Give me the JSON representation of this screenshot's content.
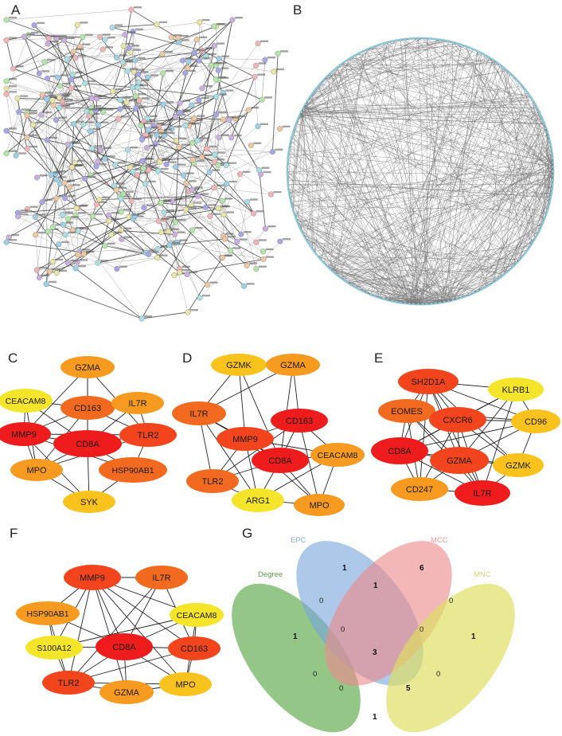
{
  "panels": {
    "A": "A",
    "B": "B",
    "C": "C",
    "D": "D",
    "E": "E",
    "F": "F",
    "G": "G"
  },
  "colors": {
    "red": "#ee1c1c",
    "redorange": "#f2451d",
    "orange": "#f26a1f",
    "amber": "#f79a20",
    "gold": "#f9c21d",
    "yellow": "#f5e52a",
    "edge": "#222222"
  },
  "networkC": {
    "nodes": [
      {
        "id": "GZMA",
        "label": "GZMA",
        "color": "amber"
      },
      {
        "id": "CEACAM8",
        "label": "CEACAM8",
        "color": "yellow"
      },
      {
        "id": "CD163",
        "label": "CD163",
        "color": "orange"
      },
      {
        "id": "IL7R",
        "label": "IL7R",
        "color": "amber"
      },
      {
        "id": "MMP9",
        "label": "MMP9",
        "color": "red"
      },
      {
        "id": "CD8A",
        "label": "CD8A",
        "color": "red"
      },
      {
        "id": "TLR2",
        "label": "TLR2",
        "color": "redorange"
      },
      {
        "id": "MPO",
        "label": "MPO",
        "color": "amber"
      },
      {
        "id": "HSP90AB1",
        "label": "HSP90AB1",
        "color": "orange"
      },
      {
        "id": "SYK",
        "label": "SYK",
        "color": "gold"
      }
    ],
    "edges": [
      [
        "GZMA",
        "CD163"
      ],
      [
        "GZMA",
        "CD8A"
      ],
      [
        "GZMA",
        "MMP9"
      ],
      [
        "GZMA",
        "TLR2"
      ],
      [
        "CEACAM8",
        "CD163"
      ],
      [
        "CEACAM8",
        "MMP9"
      ],
      [
        "CEACAM8",
        "CD8A"
      ],
      [
        "CEACAM8",
        "MPO"
      ],
      [
        "CD163",
        "IL7R"
      ],
      [
        "CD163",
        "MMP9"
      ],
      [
        "CD163",
        "CD8A"
      ],
      [
        "CD163",
        "TLR2"
      ],
      [
        "CD163",
        "MPO"
      ],
      [
        "IL7R",
        "CD8A"
      ],
      [
        "IL7R",
        "TLR2"
      ],
      [
        "MMP9",
        "CD8A"
      ],
      [
        "MMP9",
        "MPO"
      ],
      [
        "MMP9",
        "TLR2"
      ],
      [
        "MMP9",
        "SYK"
      ],
      [
        "CD8A",
        "TLR2"
      ],
      [
        "CD8A",
        "MPO"
      ],
      [
        "CD8A",
        "HSP90AB1"
      ],
      [
        "CD8A",
        "SYK"
      ],
      [
        "TLR2",
        "HSP90AB1"
      ],
      [
        "TLR2",
        "MPO"
      ],
      [
        "HSP90AB1",
        "SYK"
      ],
      [
        "MPO",
        "SYK"
      ],
      [
        "HSP90AB1",
        "MMP9"
      ]
    ]
  },
  "networkD": {
    "nodes": [
      {
        "id": "GZMK",
        "label": "GZMK",
        "color": "gold"
      },
      {
        "id": "GZMA",
        "label": "GZMA",
        "color": "amber"
      },
      {
        "id": "IL7R",
        "label": "IL7R",
        "color": "orange"
      },
      {
        "id": "CD163",
        "label": "CD163",
        "color": "red"
      },
      {
        "id": "MMP9",
        "label": "MMP9",
        "color": "redorange"
      },
      {
        "id": "CD8A",
        "label": "CD8A",
        "color": "red"
      },
      {
        "id": "CEACAM8",
        "label": "CEACAM8",
        "color": "amber"
      },
      {
        "id": "TLR2",
        "label": "TLR2",
        "color": "orange"
      },
      {
        "id": "ARG1",
        "label": "ARG1",
        "color": "yellow"
      },
      {
        "id": "MPO",
        "label": "MPO",
        "color": "amber"
      }
    ],
    "edges": [
      [
        "GZMK",
        "GZMA"
      ],
      [
        "GZMK",
        "IL7R"
      ],
      [
        "GZMK",
        "CD8A"
      ],
      [
        "GZMK",
        "MMP9"
      ],
      [
        "GZMA",
        "CD163"
      ],
      [
        "GZMA",
        "CD8A"
      ],
      [
        "GZMA",
        "IL7R"
      ],
      [
        "IL7R",
        "MMP9"
      ],
      [
        "IL7R",
        "CD8A"
      ],
      [
        "IL7R",
        "TLR2"
      ],
      [
        "IL7R",
        "ARG1"
      ],
      [
        "CD163",
        "MMP9"
      ],
      [
        "CD163",
        "CD8A"
      ],
      [
        "CD163",
        "TLR2"
      ],
      [
        "CD163",
        "MPO"
      ],
      [
        "CD163",
        "CEACAM8"
      ],
      [
        "MMP9",
        "CD8A"
      ],
      [
        "MMP9",
        "TLR2"
      ],
      [
        "MMP9",
        "ARG1"
      ],
      [
        "MMP9",
        "MPO"
      ],
      [
        "MMP9",
        "CEACAM8"
      ],
      [
        "CD8A",
        "CEACAM8"
      ],
      [
        "CD8A",
        "TLR2"
      ],
      [
        "CD8A",
        "ARG1"
      ],
      [
        "CD8A",
        "MPO"
      ],
      [
        "CEACAM8",
        "MPO"
      ],
      [
        "CEACAM8",
        "ARG1"
      ],
      [
        "TLR2",
        "ARG1"
      ],
      [
        "ARG1",
        "MPO"
      ]
    ]
  },
  "networkE": {
    "nodes": [
      {
        "id": "SH2D1A",
        "label": "SH2D1A",
        "color": "redorange"
      },
      {
        "id": "KLRB1",
        "label": "KLRB1",
        "color": "yellow"
      },
      {
        "id": "EOMES",
        "label": "EOMES",
        "color": "orange"
      },
      {
        "id": "CXCR6",
        "label": "CXCR6",
        "color": "redorange"
      },
      {
        "id": "CD96",
        "label": "CD96",
        "color": "gold"
      },
      {
        "id": "CD8A",
        "label": "CD8A",
        "color": "red"
      },
      {
        "id": "GZMA",
        "label": "GZMA",
        "color": "redorange"
      },
      {
        "id": "GZMK",
        "label": "GZMK",
        "color": "gold"
      },
      {
        "id": "CD247",
        "label": "CD247",
        "color": "amber"
      },
      {
        "id": "IL7R",
        "label": "IL7R",
        "color": "red"
      }
    ],
    "edges": [
      [
        "SH2D1A",
        "KLRB1"
      ],
      [
        "SH2D1A",
        "EOMES"
      ],
      [
        "SH2D1A",
        "CXCR6"
      ],
      [
        "SH2D1A",
        "CD96"
      ],
      [
        "SH2D1A",
        "CD8A"
      ],
      [
        "SH2D1A",
        "GZMA"
      ],
      [
        "SH2D1A",
        "GZMK"
      ],
      [
        "SH2D1A",
        "CD247"
      ],
      [
        "SH2D1A",
        "IL7R"
      ],
      [
        "KLRB1",
        "CXCR6"
      ],
      [
        "KLRB1",
        "CD96"
      ],
      [
        "KLRB1",
        "GZMA"
      ],
      [
        "KLRB1",
        "CD8A"
      ],
      [
        "KLRB1",
        "IL7R"
      ],
      [
        "EOMES",
        "CXCR6"
      ],
      [
        "EOMES",
        "CD8A"
      ],
      [
        "EOMES",
        "GZMA"
      ],
      [
        "EOMES",
        "CD247"
      ],
      [
        "EOMES",
        "CD96"
      ],
      [
        "CXCR6",
        "CD96"
      ],
      [
        "CXCR6",
        "CD8A"
      ],
      [
        "CXCR6",
        "GZMA"
      ],
      [
        "CXCR6",
        "GZMK"
      ],
      [
        "CXCR6",
        "CD247"
      ],
      [
        "CXCR6",
        "IL7R"
      ],
      [
        "CD96",
        "GZMA"
      ],
      [
        "CD96",
        "GZMK"
      ],
      [
        "CD96",
        "CD8A"
      ],
      [
        "CD8A",
        "GZMA"
      ],
      [
        "CD8A",
        "CD247"
      ],
      [
        "CD8A",
        "IL7R"
      ],
      [
        "CD8A",
        "GZMK"
      ],
      [
        "GZMA",
        "GZMK"
      ],
      [
        "GZMA",
        "CD247"
      ],
      [
        "GZMA",
        "IL7R"
      ],
      [
        "GZMK",
        "IL7R"
      ],
      [
        "CD247",
        "IL7R"
      ],
      [
        "EOMES",
        "IL7R"
      ]
    ]
  },
  "networkF": {
    "nodes": [
      {
        "id": "MMP9",
        "label": "MMP9",
        "color": "redorange"
      },
      {
        "id": "IL7R",
        "label": "IL7R",
        "color": "orange"
      },
      {
        "id": "HSP90AB1",
        "label": "HSP90AB1",
        "color": "amber"
      },
      {
        "id": "CEACAM8",
        "label": "CEACAM8",
        "color": "yellow"
      },
      {
        "id": "S100A12",
        "label": "S100A12",
        "color": "yellow"
      },
      {
        "id": "CD8A",
        "label": "CD8A",
        "color": "red"
      },
      {
        "id": "CD163",
        "label": "CD163",
        "color": "redorange"
      },
      {
        "id": "TLR2",
        "label": "TLR2",
        "color": "redorange"
      },
      {
        "id": "GZMA",
        "label": "GZMA",
        "color": "amber"
      },
      {
        "id": "MPO",
        "label": "MPO",
        "color": "gold"
      }
    ],
    "edges": [
      [
        "MMP9",
        "IL7R"
      ],
      [
        "MMP9",
        "HSP90AB1"
      ],
      [
        "MMP9",
        "CEACAM8"
      ],
      [
        "MMP9",
        "S100A12"
      ],
      [
        "MMP9",
        "CD8A"
      ],
      [
        "MMP9",
        "CD163"
      ],
      [
        "MMP9",
        "TLR2"
      ],
      [
        "MMP9",
        "GZMA"
      ],
      [
        "MMP9",
        "MPO"
      ],
      [
        "IL7R",
        "CD8A"
      ],
      [
        "IL7R",
        "CD163"
      ],
      [
        "IL7R",
        "TLR2"
      ],
      [
        "HSP90AB1",
        "CD8A"
      ],
      [
        "HSP90AB1",
        "TLR2"
      ],
      [
        "HSP90AB1",
        "S100A12"
      ],
      [
        "CEACAM8",
        "CD8A"
      ],
      [
        "CEACAM8",
        "CD163"
      ],
      [
        "CEACAM8",
        "MPO"
      ],
      [
        "CEACAM8",
        "S100A12"
      ],
      [
        "S100A12",
        "CD8A"
      ],
      [
        "S100A12",
        "TLR2"
      ],
      [
        "CD8A",
        "CD163"
      ],
      [
        "CD8A",
        "TLR2"
      ],
      [
        "CD8A",
        "GZMA"
      ],
      [
        "CD8A",
        "MPO"
      ],
      [
        "CD163",
        "MPO"
      ],
      [
        "CD163",
        "TLR2"
      ],
      [
        "TLR2",
        "GZMA"
      ],
      [
        "GZMA",
        "MPO"
      ],
      [
        "TLR2",
        "MPO"
      ]
    ]
  },
  "venn": {
    "sets": [
      {
        "name": "Degree",
        "color": "#6bb05a",
        "textcolor": "#5c9f4a"
      },
      {
        "name": "EPC",
        "color": "#7aa7dc",
        "textcolor": "#84a9d4"
      },
      {
        "name": "MCC",
        "color": "#ec8a8a",
        "textcolor": "#e89a9a"
      },
      {
        "name": "MNC",
        "color": "#dede60",
        "textcolor": "#d6d67a"
      }
    ],
    "counts": [
      {
        "v": "1",
        "bold": true
      },
      {
        "v": "6",
        "bold": true
      },
      {
        "v": "1",
        "bold": true
      },
      {
        "v": "1",
        "bold": true
      },
      {
        "v": "0",
        "bold": false
      },
      {
        "v": "1",
        "bold": true
      },
      {
        "v": "0",
        "bold": false
      },
      {
        "v": "0",
        "bold": false
      },
      {
        "v": "0",
        "bold": false
      },
      {
        "v": "3",
        "bold": true
      },
      {
        "v": "0",
        "bold": false
      },
      {
        "v": "0",
        "bold": false
      },
      {
        "v": "0",
        "bold": false
      },
      {
        "v": "5",
        "bold": true
      },
      {
        "v": "1",
        "bold": true
      }
    ]
  }
}
